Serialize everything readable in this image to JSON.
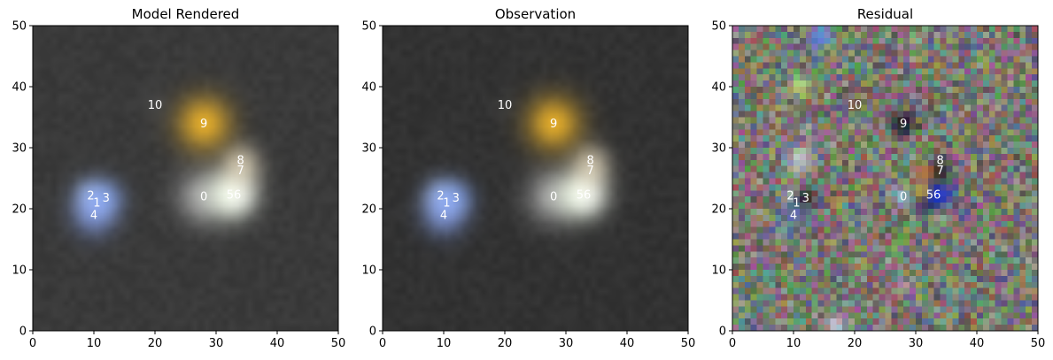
{
  "chart_data": [
    {
      "type": "heatmap",
      "title": "Model Rendered",
      "xlim": [
        0,
        50
      ],
      "ylim": [
        0,
        50
      ],
      "xticks": [
        0,
        10,
        20,
        30,
        40,
        50
      ],
      "yticks": [
        0,
        10,
        20,
        30,
        40,
        50
      ],
      "background": "#3a3a3a",
      "sources": [
        {
          "label": "0",
          "x": 28.0,
          "y": 22.0,
          "color": "#ffffff",
          "strength": 0.55,
          "radius": 3.0
        },
        {
          "label": "1",
          "x": 10.5,
          "y": 21.0,
          "color": "#cfe0ff",
          "strength": 0.6,
          "radius": 2.0
        },
        {
          "label": "2",
          "x": 9.5,
          "y": 22.2,
          "color": "#a8c4ff",
          "strength": 0.6,
          "radius": 2.0
        },
        {
          "label": "3",
          "x": 12.0,
          "y": 21.8,
          "color": "#7fa6ff",
          "strength": 0.5,
          "radius": 2.0
        },
        {
          "label": "4",
          "x": 10.0,
          "y": 19.0,
          "color": "#8aa8ff",
          "strength": 0.6,
          "radius": 2.5
        },
        {
          "label": "5",
          "x": 32.3,
          "y": 22.3,
          "color": "#f2ffe6",
          "strength": 0.9,
          "radius": 2.6
        },
        {
          "label": "6",
          "x": 33.5,
          "y": 22.3,
          "color": "#ffffff",
          "strength": 0.6,
          "radius": 2.2
        },
        {
          "label": "7",
          "x": 34.0,
          "y": 26.3,
          "color": "#fff3d6",
          "strength": 0.5,
          "radius": 2.2
        },
        {
          "label": "8",
          "x": 34.0,
          "y": 28.0,
          "color": "#fff0d0",
          "strength": 0.4,
          "radius": 2.0
        },
        {
          "label": "9",
          "x": 28.0,
          "y": 34.0,
          "color": "#ffc02a",
          "strength": 0.85,
          "radius": 3.0
        },
        {
          "label": "10",
          "x": 20.0,
          "y": 37.0,
          "color": "#5a5a5a",
          "strength": 0.4,
          "radius": 1.5
        }
      ]
    },
    {
      "type": "heatmap",
      "title": "Observation",
      "xlim": [
        0,
        50
      ],
      "ylim": [
        0,
        50
      ],
      "xticks": [
        0,
        10,
        20,
        30,
        40,
        50
      ],
      "yticks": [
        0,
        10,
        20,
        30,
        40,
        50
      ],
      "background": "#323232",
      "sources": [
        {
          "label": "0",
          "x": 28.0,
          "y": 22.0,
          "color": "#ffffff",
          "strength": 0.55,
          "radius": 3.0
        },
        {
          "label": "1",
          "x": 10.5,
          "y": 21.0,
          "color": "#cfe0ff",
          "strength": 0.6,
          "radius": 2.0
        },
        {
          "label": "2",
          "x": 9.5,
          "y": 22.2,
          "color": "#a8c4ff",
          "strength": 0.6,
          "radius": 2.0
        },
        {
          "label": "3",
          "x": 12.0,
          "y": 21.8,
          "color": "#7fa6ff",
          "strength": 0.5,
          "radius": 2.0
        },
        {
          "label": "4",
          "x": 10.0,
          "y": 19.0,
          "color": "#8aa8ff",
          "strength": 0.6,
          "radius": 2.5
        },
        {
          "label": "5",
          "x": 32.3,
          "y": 22.3,
          "color": "#f2ffe6",
          "strength": 0.9,
          "radius": 2.6
        },
        {
          "label": "6",
          "x": 33.5,
          "y": 22.3,
          "color": "#ffffff",
          "strength": 0.6,
          "radius": 2.2
        },
        {
          "label": "7",
          "x": 34.0,
          "y": 26.3,
          "color": "#fff3d6",
          "strength": 0.5,
          "radius": 2.2
        },
        {
          "label": "8",
          "x": 34.0,
          "y": 28.0,
          "color": "#fff0d0",
          "strength": 0.4,
          "radius": 2.0
        },
        {
          "label": "9",
          "x": 28.0,
          "y": 34.0,
          "color": "#ffc02a",
          "strength": 0.85,
          "radius": 3.0
        },
        {
          "label": "10",
          "x": 20.0,
          "y": 37.0,
          "color": "#4a4a4a",
          "strength": 0.3,
          "radius": 1.5
        }
      ]
    },
    {
      "type": "heatmap",
      "title": "Residual",
      "xlim": [
        0,
        50
      ],
      "ylim": [
        0,
        50
      ],
      "xticks": [
        0,
        10,
        20,
        30,
        40,
        50
      ],
      "yticks": [
        0,
        10,
        20,
        30,
        40,
        50
      ],
      "background": "#7a7a70",
      "sources": [
        {
          "label": "0",
          "x": 28.0,
          "y": 22.0,
          "color": "#9adfff",
          "strength": 0.6,
          "radius": 1.3
        },
        {
          "label": "1",
          "x": 10.5,
          "y": 21.0,
          "color": "#2a2a3a",
          "strength": 0.4,
          "radius": 1.0
        },
        {
          "label": "2",
          "x": 9.5,
          "y": 22.2,
          "color": "#d0e0ff",
          "strength": 0.5,
          "radius": 1.0
        },
        {
          "label": "3",
          "x": 12.0,
          "y": 21.8,
          "color": "#000000",
          "strength": 0.7,
          "radius": 1.2
        },
        {
          "label": "4",
          "x": 10.0,
          "y": 19.0,
          "color": "#3f6fd0",
          "strength": 0.6,
          "radius": 1.5
        },
        {
          "label": "5",
          "x": 32.3,
          "y": 22.3,
          "color": "#000000",
          "strength": 0.8,
          "radius": 1.8
        },
        {
          "label": "6",
          "x": 33.5,
          "y": 22.3,
          "color": "#1030ff",
          "strength": 0.8,
          "radius": 1.6
        },
        {
          "label": "7",
          "x": 34.0,
          "y": 26.3,
          "color": "#000000",
          "strength": 0.7,
          "radius": 1.2
        },
        {
          "label": "8",
          "x": 34.0,
          "y": 28.0,
          "color": "#3a3a5a",
          "strength": 0.5,
          "radius": 1.0
        },
        {
          "label": "9",
          "x": 28.0,
          "y": 34.0,
          "color": "#000010",
          "strength": 0.8,
          "radius": 1.4
        },
        {
          "label": "10",
          "x": 20.0,
          "y": 37.0,
          "color": "#4a4a4a",
          "strength": 0.5,
          "radius": 1.2
        }
      ],
      "features": [
        {
          "x": 11,
          "y": 40,
          "color": "#c8ff70",
          "strength": 0.6,
          "radius": 1.4
        },
        {
          "x": 14,
          "y": 48,
          "color": "#4f8fff",
          "strength": 0.7,
          "radius": 1.5
        },
        {
          "x": 30,
          "y": 47.5,
          "color": "#a0e090",
          "strength": 0.4,
          "radius": 1.2
        },
        {
          "x": 11,
          "y": 28,
          "color": "#e8f4ff",
          "strength": 0.6,
          "radius": 1.6
        },
        {
          "x": 31.5,
          "y": 26,
          "color": "#ff8a30",
          "strength": 0.6,
          "radius": 1.2
        },
        {
          "x": 31,
          "y": 23,
          "color": "#ffd040",
          "strength": 0.7,
          "radius": 1.0
        },
        {
          "x": 34,
          "y": 18,
          "color": "#d0ff90",
          "strength": 0.3,
          "radius": 1.2
        },
        {
          "x": 28,
          "y": 7,
          "color": "#ff9ad0",
          "strength": 0.4,
          "radius": 1.2
        },
        {
          "x": 17,
          "y": 1,
          "color": "#e0f0ff",
          "strength": 0.6,
          "radius": 1.4
        },
        {
          "x": 27,
          "y": 12,
          "color": "#80ff90",
          "strength": 0.25,
          "radius": 1.0
        }
      ]
    }
  ]
}
